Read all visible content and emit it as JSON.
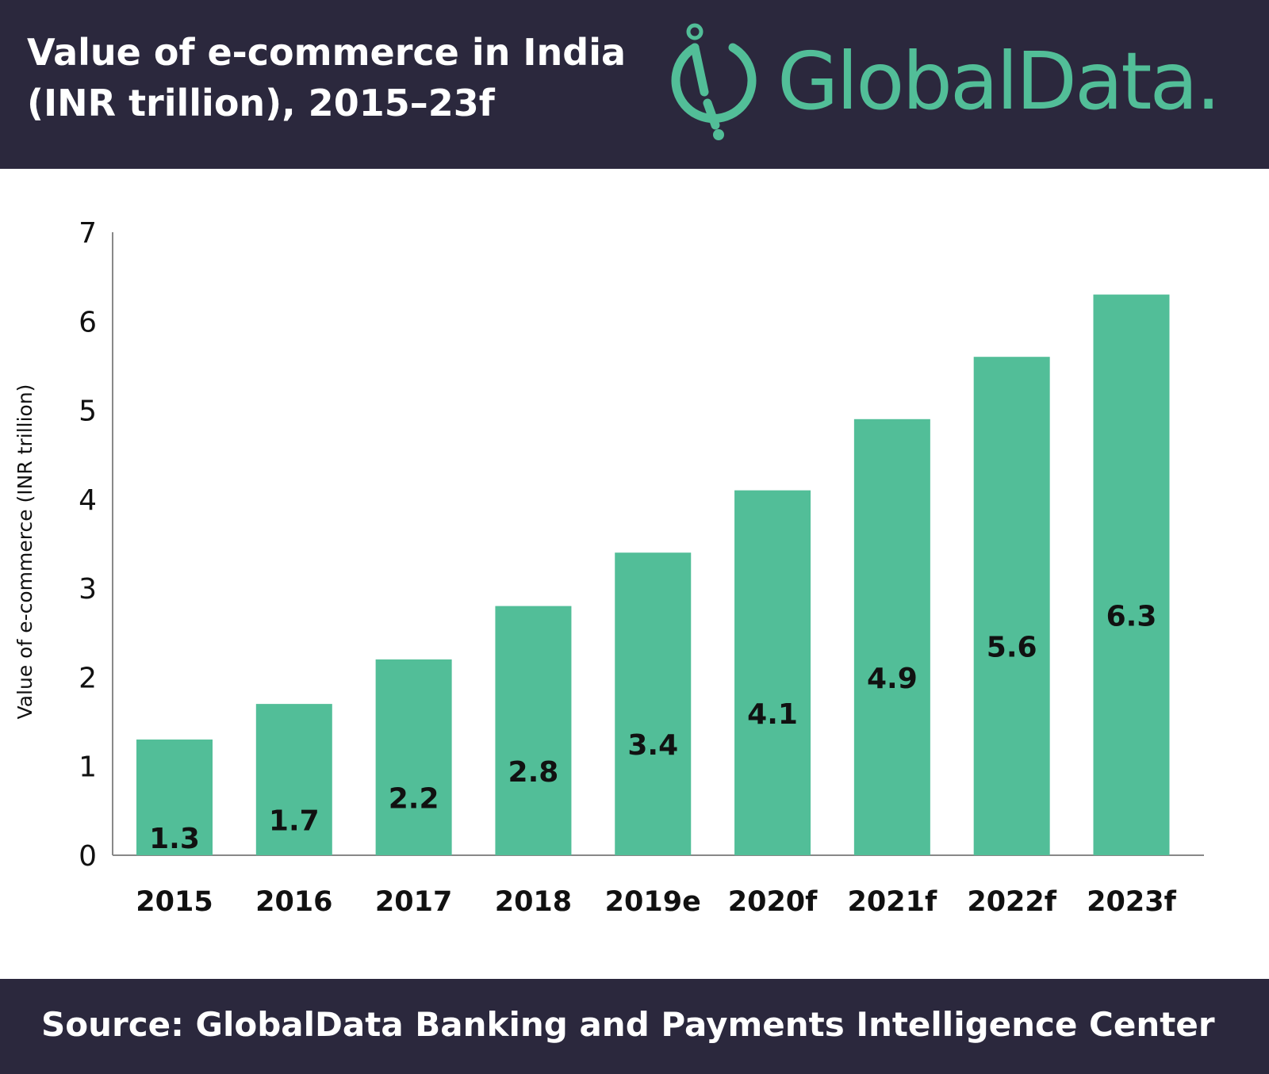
{
  "header": {
    "title_line1": "Value of e-commerce in India",
    "title_line2": "(INR trillion), 2015–23f",
    "logo_text": "GlobalData."
  },
  "footer": {
    "source": "Source:  GlobalData Banking and Payments Intelligence Center"
  },
  "colors": {
    "bar": "#52be98",
    "header_bg": "#2b283d",
    "axis": "#888888",
    "label": "#111111"
  },
  "chart_data": {
    "type": "bar",
    "title": "Value of e-commerce in India (INR trillion), 2015–23f",
    "categories": [
      "2015",
      "2016",
      "2017",
      "2018",
      "2019e",
      "2020f",
      "2021f",
      "2022f",
      "2023f"
    ],
    "values": [
      1.3,
      1.7,
      2.2,
      2.8,
      3.4,
      4.1,
      4.9,
      5.6,
      6.3
    ],
    "data_labels": [
      "1.3",
      "1.7",
      "2.2",
      "2.8",
      "3.4",
      "4.1",
      "4.9",
      "5.6",
      "6.3"
    ],
    "xlabel": "",
    "ylabel": "Value of e-commerce (INR trillion)",
    "ylim": [
      0,
      7
    ],
    "yticks": [
      "0",
      "1",
      "2",
      "3",
      "4",
      "5",
      "6",
      "7"
    ],
    "grid": false,
    "legend": "none"
  }
}
